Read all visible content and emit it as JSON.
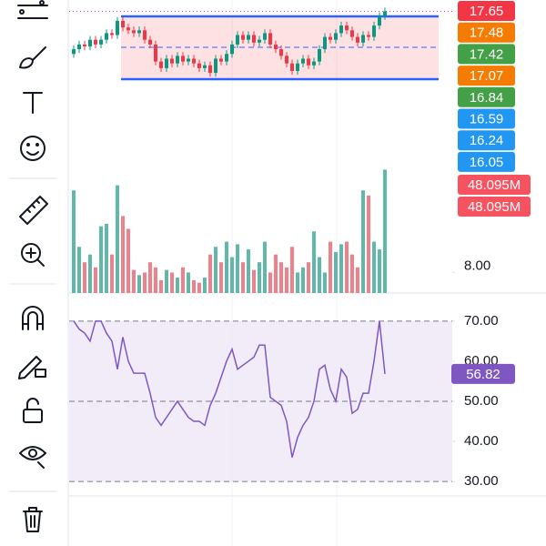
{
  "chart_data": [
    {
      "type": "candlestick",
      "up_color": "#089981",
      "down_color": "#f23645",
      "last_line_color": "#f23645",
      "ylim": [
        15.9,
        17.77
      ],
      "open": [
        17.2,
        17.25,
        17.3,
        17.28,
        17.35,
        17.3,
        17.35,
        17.42,
        17.4,
        17.55,
        17.48,
        17.45,
        17.42,
        17.45,
        17.35,
        17.3,
        17.12,
        17.05,
        17.15,
        17.1,
        17.18,
        17.12,
        17.15,
        17.1,
        17.05,
        17.08,
        17.0,
        17.15,
        17.12,
        17.2,
        17.3,
        17.4,
        17.35,
        17.4,
        17.32,
        17.35,
        17.42,
        17.3,
        17.25,
        17.18,
        17.1,
        17.02,
        17.1,
        17.15,
        17.08,
        17.12,
        17.25,
        17.38,
        17.35,
        17.42,
        17.5,
        17.45,
        17.38,
        17.32,
        17.4,
        17.38,
        17.5,
        17.6
      ],
      "high": [
        17.29,
        17.34,
        17.34,
        17.39,
        17.39,
        17.39,
        17.46,
        17.46,
        17.59,
        17.59,
        17.52,
        17.49,
        17.49,
        17.49,
        17.39,
        17.34,
        17.16,
        17.19,
        17.19,
        17.22,
        17.22,
        17.19,
        17.19,
        17.14,
        17.12,
        17.12,
        17.19,
        17.19,
        17.24,
        17.34,
        17.44,
        17.44,
        17.44,
        17.44,
        17.39,
        17.46,
        17.46,
        17.34,
        17.29,
        17.22,
        17.14,
        17.14,
        17.19,
        17.19,
        17.16,
        17.29,
        17.42,
        17.42,
        17.46,
        17.54,
        17.54,
        17.49,
        17.42,
        17.44,
        17.44,
        17.54,
        17.64,
        17.69
      ],
      "low": [
        17.16,
        17.21,
        17.24,
        17.24,
        17.26,
        17.26,
        17.31,
        17.36,
        17.36,
        17.44,
        17.41,
        17.38,
        17.38,
        17.31,
        17.26,
        17.08,
        17.01,
        17.01,
        17.06,
        17.06,
        17.08,
        17.08,
        17.06,
        17.01,
        17.01,
        16.96,
        16.96,
        17.08,
        17.08,
        17.16,
        17.26,
        17.31,
        17.31,
        17.28,
        17.28,
        17.31,
        17.26,
        17.21,
        17.14,
        17.06,
        16.98,
        16.98,
        17.06,
        17.04,
        17.04,
        17.08,
        17.21,
        17.31,
        17.31,
        17.38,
        17.41,
        17.34,
        17.28,
        17.28,
        17.34,
        17.34,
        17.46,
        17.56
      ],
      "close": [
        17.25,
        17.3,
        17.28,
        17.35,
        17.3,
        17.35,
        17.42,
        17.4,
        17.55,
        17.48,
        17.45,
        17.42,
        17.45,
        17.35,
        17.3,
        17.12,
        17.05,
        17.15,
        17.1,
        17.18,
        17.12,
        17.15,
        17.1,
        17.05,
        17.08,
        17.0,
        17.15,
        17.12,
        17.2,
        17.3,
        17.4,
        17.35,
        17.4,
        17.32,
        17.35,
        17.42,
        17.3,
        17.25,
        17.18,
        17.1,
        17.02,
        17.1,
        17.15,
        17.08,
        17.12,
        17.25,
        17.38,
        17.35,
        17.42,
        17.5,
        17.45,
        17.38,
        17.32,
        17.4,
        17.38,
        17.5,
        17.6,
        17.65
      ],
      "price_labels": [
        {
          "value": 17.65,
          "label": "17.65",
          "color": "#f23645"
        },
        {
          "value": 17.48,
          "label": "17.48",
          "color": "#f57c00"
        },
        {
          "value": 17.42,
          "label": "17.42",
          "color": "#43a047"
        },
        {
          "value": 17.07,
          "label": "17.07",
          "color": "#f57c00"
        },
        {
          "value": 16.84,
          "label": "16.84",
          "color": "#43a047"
        },
        {
          "value": 16.59,
          "label": "16.59",
          "color": "#2196f3"
        },
        {
          "value": 16.24,
          "label": "16.24",
          "color": "#2196f3"
        },
        {
          "value": 16.05,
          "label": "16.05",
          "color": "#2196f3"
        }
      ]
    },
    {
      "type": "bar",
      "up_color": "#5fb9a9",
      "down_color": "#f0808a",
      "ylim": [
        0,
        50
      ],
      "yticks": [
        {
          "value": 8,
          "label": "8.00"
        }
      ],
      "values": [
        40,
        18,
        12,
        15,
        10,
        26,
        27,
        15,
        42,
        30,
        25,
        9,
        7,
        8,
        12,
        10,
        5,
        9,
        8,
        6,
        10,
        8,
        5,
        4,
        6,
        15,
        18,
        12,
        20,
        14,
        19,
        12,
        17,
        9,
        12,
        20,
        8,
        15,
        12,
        10,
        18,
        8,
        10,
        12,
        24,
        14,
        8,
        20,
        16,
        19,
        20,
        15,
        10,
        40,
        38,
        20,
        17,
        48.095
      ],
      "last_labels": [
        {
          "value": 48.095,
          "label": "48.095M",
          "color": "#f7525f"
        },
        {
          "value": 48.095,
          "label": "48.095M",
          "color": "#f7525f"
        }
      ]
    },
    {
      "type": "line",
      "color": "#7e57c2",
      "band_color": "#ede7f6",
      "ylim": [
        26.4,
        77
      ],
      "band": [
        30,
        70
      ],
      "hlines": [
        70,
        50,
        30
      ],
      "yticks": [
        {
          "value": 70,
          "label": "70.00"
        },
        {
          "value": 60,
          "label": "60.00"
        },
        {
          "value": 50,
          "label": "50.00"
        },
        {
          "value": 40,
          "label": "40.00"
        },
        {
          "value": 30,
          "label": "30.00"
        }
      ],
      "values": [
        70,
        68,
        67,
        65,
        70,
        70,
        67,
        65,
        58,
        66,
        60,
        57,
        57,
        57,
        52,
        46,
        44,
        46,
        48,
        50,
        48,
        46,
        45,
        45,
        44,
        49,
        52,
        56,
        60,
        63,
        58,
        59,
        60,
        61,
        64,
        64,
        51,
        50,
        49,
        45,
        36,
        41,
        44,
        46,
        50,
        58,
        59,
        53,
        50,
        58,
        56,
        47,
        48,
        52,
        52,
        60,
        70,
        56.82
      ],
      "last_label": {
        "value": 56.82,
        "label": "56.82"
      }
    }
  ]
}
